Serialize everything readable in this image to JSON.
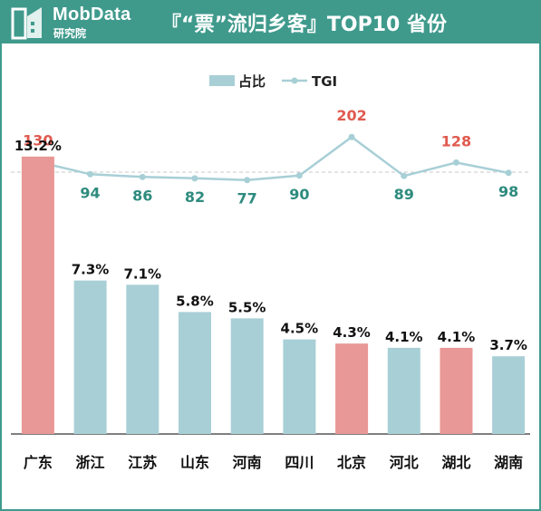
{
  "header": {
    "brand": "MobData",
    "brand_sub": "研究院",
    "title": "『“票”流归乡客』TOP10 省份"
  },
  "colors": {
    "header": "#3f9a8c",
    "bar_default": "#a8cfd6",
    "bar_highlight": "#e89896",
    "line": "#a8cfd6",
    "label_high": "#e05a4f",
    "label_low": "#2e8b7e",
    "reference": "#c8c8c8"
  },
  "chart_data": {
    "type": "bar",
    "categories": [
      "广东",
      "浙江",
      "江苏",
      "山东",
      "河南",
      "四川",
      "北京",
      "河北",
      "湖北",
      "湖南"
    ],
    "series": [
      {
        "name": "占比",
        "type": "bar",
        "values": [
          13.2,
          7.3,
          7.1,
          5.8,
          5.5,
          4.5,
          4.3,
          4.1,
          4.1,
          3.7
        ],
        "labels": [
          "13.2%",
          "7.3%",
          "7.1%",
          "5.8%",
          "5.5%",
          "4.5%",
          "4.3%",
          "4.1%",
          "4.1%",
          "3.7%"
        ],
        "highlight": [
          true,
          false,
          false,
          false,
          false,
          false,
          true,
          false,
          true,
          false
        ]
      },
      {
        "name": "TGI",
        "type": "line",
        "values": [
          130,
          94,
          86,
          82,
          77,
          90,
          202,
          89,
          128,
          98
        ],
        "reference": 100
      }
    ],
    "legend": {
      "position": "top-center",
      "entries": [
        "占比",
        "TGI"
      ]
    }
  }
}
